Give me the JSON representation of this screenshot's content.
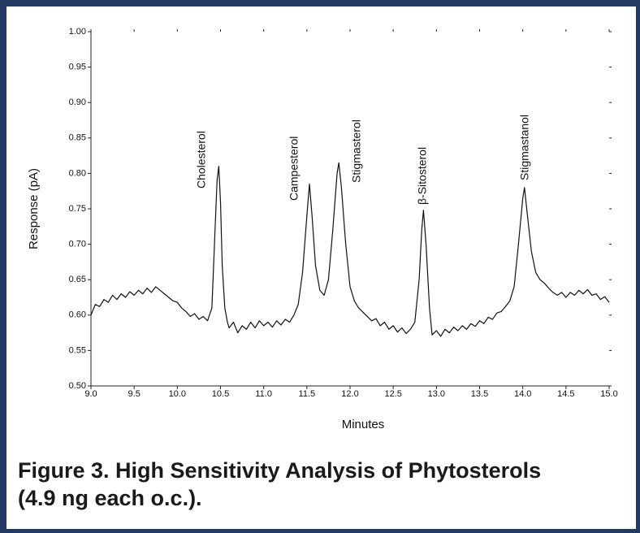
{
  "chart_data": {
    "type": "line",
    "xlabel": "Minutes",
    "ylabel": "Response (pA)",
    "caption": [
      "Figure 3. High Sensitivity Analysis of Phytosterols",
      "(4.9 ng each o.c.)."
    ],
    "annotations": [
      "Cholesterol",
      "Campesterol",
      "Stigmasterol",
      "β-Sitosterol",
      "Stigmastanol"
    ],
    "xlim": [
      9.0,
      15.0
    ],
    "ylim": [
      0.5,
      1.0
    ],
    "xticks": [
      {
        "value": 9,
        "label": "9.0"
      },
      {
        "value": 9.5,
        "label": "9.5"
      },
      {
        "value": 10,
        "label": "10.0"
      },
      {
        "value": 10.5,
        "label": "10.5"
      },
      {
        "value": 11,
        "label": "11.0"
      },
      {
        "value": 11.5,
        "label": "11.5"
      },
      {
        "value": 12,
        "label": "12.0"
      },
      {
        "value": 12.5,
        "label": "12.5"
      },
      {
        "value": 13,
        "label": "13.0"
      },
      {
        "value": 13.5,
        "label": "13.5"
      },
      {
        "value": 14,
        "label": "14.0"
      },
      {
        "value": 14.5,
        "label": "14.5"
      },
      {
        "value": 15,
        "label": "15.0"
      }
    ],
    "yticks": [
      {
        "value": 0.5,
        "label": "0.50"
      },
      {
        "value": 0.55,
        "label": "0.55"
      },
      {
        "value": 0.6,
        "label": "0.60"
      },
      {
        "value": 0.65,
        "label": "0.65"
      },
      {
        "value": 0.7,
        "label": "0.70"
      },
      {
        "value": 0.75,
        "label": "0.75"
      },
      {
        "value": 0.8,
        "label": "0.80"
      },
      {
        "value": 0.85,
        "label": "0.85"
      },
      {
        "value": 0.9,
        "label": "0.90"
      },
      {
        "value": 0.95,
        "label": "0.95"
      },
      {
        "value": 1,
        "label": "1.00"
      }
    ],
    "grid": false,
    "series": [
      {
        "name": "Response",
        "color": "#111111",
        "x": [
          9.0,
          9.05,
          9.1,
          9.15,
          9.2,
          9.25,
          9.3,
          9.35,
          9.4,
          9.45,
          9.5,
          9.55,
          9.6,
          9.65,
          9.7,
          9.75,
          9.8,
          9.85,
          9.9,
          9.95,
          10.0,
          10.05,
          10.1,
          10.15,
          10.2,
          10.25,
          10.3,
          10.35,
          10.4,
          10.43,
          10.46,
          10.48,
          10.5,
          10.52,
          10.55,
          10.58,
          10.6,
          10.65,
          10.7,
          10.75,
          10.8,
          10.85,
          10.9,
          10.95,
          11.0,
          11.05,
          11.1,
          11.15,
          11.2,
          11.25,
          11.3,
          11.35,
          11.4,
          11.45,
          11.5,
          11.53,
          11.56,
          11.6,
          11.65,
          11.7,
          11.75,
          11.8,
          11.85,
          11.87,
          11.9,
          11.95,
          12.0,
          12.05,
          12.1,
          12.15,
          12.2,
          12.25,
          12.3,
          12.35,
          12.4,
          12.45,
          12.5,
          12.55,
          12.6,
          12.65,
          12.7,
          12.75,
          12.8,
          12.83,
          12.85,
          12.88,
          12.92,
          12.95,
          13.0,
          13.05,
          13.1,
          13.15,
          13.2,
          13.25,
          13.3,
          13.35,
          13.4,
          13.45,
          13.5,
          13.55,
          13.6,
          13.65,
          13.7,
          13.75,
          13.8,
          13.85,
          13.9,
          13.95,
          14.0,
          14.02,
          14.05,
          14.1,
          14.15,
          14.2,
          14.25,
          14.3,
          14.35,
          14.4,
          14.45,
          14.5,
          14.55,
          14.6,
          14.65,
          14.7,
          14.75,
          14.8,
          14.85,
          14.9,
          14.95,
          15.0
        ],
        "values": [
          0.6,
          0.615,
          0.612,
          0.622,
          0.618,
          0.628,
          0.622,
          0.63,
          0.625,
          0.633,
          0.628,
          0.635,
          0.63,
          0.638,
          0.632,
          0.64,
          0.635,
          0.63,
          0.625,
          0.62,
          0.618,
          0.61,
          0.605,
          0.598,
          0.602,
          0.594,
          0.598,
          0.592,
          0.61,
          0.7,
          0.79,
          0.81,
          0.76,
          0.67,
          0.61,
          0.59,
          0.582,
          0.59,
          0.575,
          0.585,
          0.58,
          0.59,
          0.582,
          0.592,
          0.585,
          0.59,
          0.583,
          0.592,
          0.586,
          0.594,
          0.59,
          0.6,
          0.615,
          0.66,
          0.74,
          0.785,
          0.74,
          0.67,
          0.635,
          0.628,
          0.65,
          0.72,
          0.8,
          0.815,
          0.78,
          0.7,
          0.64,
          0.62,
          0.61,
          0.604,
          0.598,
          0.592,
          0.595,
          0.585,
          0.59,
          0.58,
          0.585,
          0.576,
          0.582,
          0.574,
          0.58,
          0.59,
          0.65,
          0.72,
          0.748,
          0.7,
          0.61,
          0.572,
          0.578,
          0.57,
          0.58,
          0.575,
          0.583,
          0.578,
          0.585,
          0.58,
          0.588,
          0.584,
          0.592,
          0.588,
          0.597,
          0.594,
          0.603,
          0.605,
          0.612,
          0.62,
          0.64,
          0.7,
          0.765,
          0.78,
          0.745,
          0.69,
          0.66,
          0.65,
          0.645,
          0.638,
          0.632,
          0.628,
          0.632,
          0.625,
          0.632,
          0.628,
          0.635,
          0.63,
          0.636,
          0.628,
          0.63,
          0.622,
          0.626,
          0.618
        ]
      }
    ]
  }
}
